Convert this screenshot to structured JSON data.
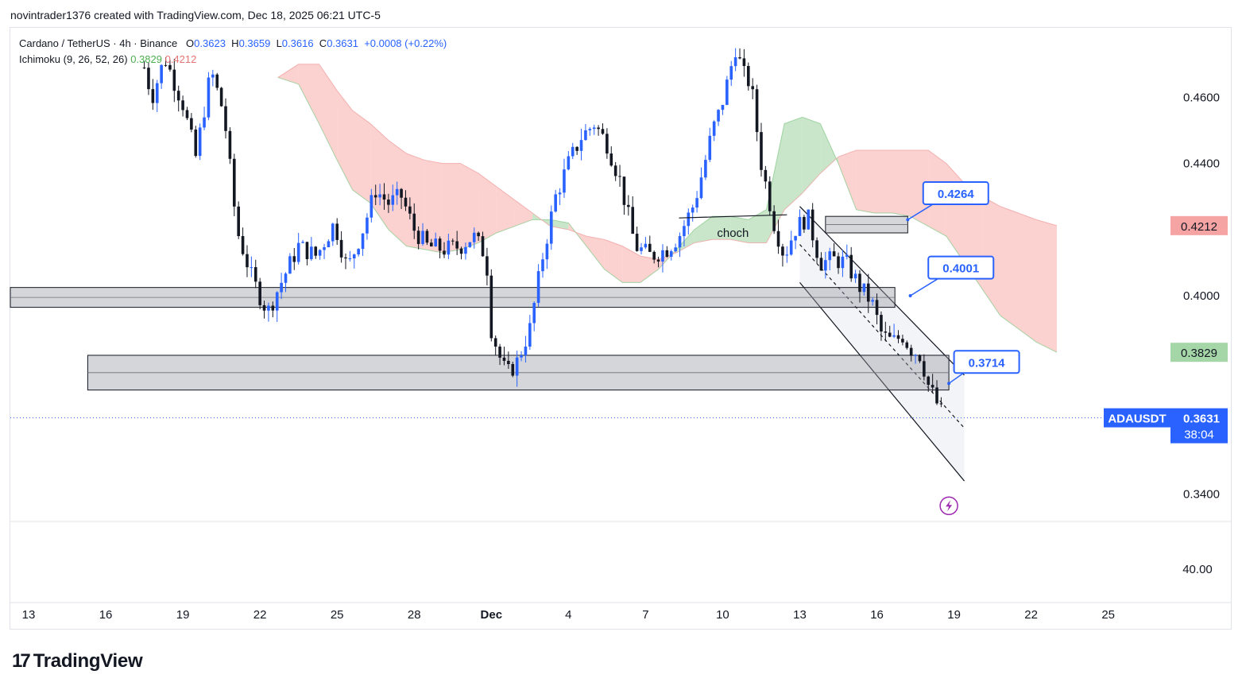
{
  "header": {
    "attribution": "novintrader1376 created with TradingView.com, Dec 18, 2025 06:21 UTC-5"
  },
  "legend": {
    "symbol_line": "Cardano / TetherUS · 4h · Binance",
    "open_label": "O",
    "open": "0.3623",
    "high_label": "H",
    "high": "0.3659",
    "low_label": "L",
    "low": "0.3616",
    "close_label": "C",
    "close": "0.3631",
    "change": "+0.0008 (+0.22%)",
    "indicator": "Ichimoku (9, 26, 52, 26)",
    "indicator_v1": "0.3829",
    "indicator_v2": "0.4212"
  },
  "footer": {
    "brand": "TradingView",
    "brand_mark": "17"
  },
  "colors": {
    "up": "#2962ff",
    "down": "#131722",
    "cloud_bull": "#a5d6a7",
    "cloud_bear": "#f8b4b0",
    "label_blue": "#2962ff",
    "price_green": "#a5d6a7",
    "price_red": "#f5a3a3"
  },
  "chart_data": {
    "type": "candlestick",
    "symbol": "ADAUSDT",
    "timeframe": "4h",
    "y_axis": {
      "range": [
        0.332,
        0.481
      ],
      "ticks": [
        "0.4600",
        "0.4400",
        "0.4000",
        "0.3400"
      ]
    },
    "oscillator_axis": {
      "tick": "40.00",
      "tick_value": 40
    },
    "x_axis": {
      "range_days": [
        0,
        41.5
      ],
      "ticks": [
        {
          "label": "13",
          "day": 0
        },
        {
          "label": "16",
          "day": 3
        },
        {
          "label": "19",
          "day": 6
        },
        {
          "label": "22",
          "day": 9
        },
        {
          "label": "25",
          "day": 12
        },
        {
          "label": "28",
          "day": 15
        },
        {
          "label": "Dec",
          "day": 18
        },
        {
          "label": "4",
          "day": 21
        },
        {
          "label": "7",
          "day": 24
        },
        {
          "label": "10",
          "day": 27
        },
        {
          "label": "13",
          "day": 30
        },
        {
          "label": "16",
          "day": 33
        },
        {
          "label": "19",
          "day": 36
        },
        {
          "label": "22",
          "day": 39
        },
        {
          "label": "25",
          "day": 42
        }
      ]
    },
    "price_path_days": [
      4.5,
      4.8,
      5.3,
      6.0,
      6.5,
      7.1,
      7.6,
      8.1,
      8.7,
      9.3,
      9.7,
      10.5,
      11.2,
      11.9,
      12.4,
      13.0,
      13.5,
      14.0,
      14.5,
      15.0,
      15.5,
      16.2,
      16.8,
      17.3,
      17.8,
      18.0,
      18.3,
      18.6,
      19.0,
      19.5,
      20.0,
      20.5,
      21.0,
      21.5,
      22.0,
      22.5,
      23.0,
      23.6,
      24.2,
      24.8,
      25.3,
      25.9,
      26.3,
      26.6,
      26.9,
      27.2,
      27.5,
      27.8,
      28.1,
      28.5,
      29.0,
      29.4,
      29.8,
      30.3,
      30.8,
      31.3,
      31.8,
      32.3,
      32.8,
      33.2,
      33.6,
      34.0,
      34.3,
      34.7,
      35.0,
      35.3,
      35.6
    ],
    "price_path_values": [
      0.469,
      0.46,
      0.472,
      0.458,
      0.442,
      0.468,
      0.455,
      0.42,
      0.405,
      0.395,
      0.402,
      0.415,
      0.412,
      0.422,
      0.408,
      0.42,
      0.432,
      0.428,
      0.43,
      0.42,
      0.415,
      0.414,
      0.415,
      0.418,
      0.412,
      0.39,
      0.382,
      0.376,
      0.38,
      0.39,
      0.412,
      0.43,
      0.44,
      0.448,
      0.452,
      0.446,
      0.435,
      0.415,
      0.412,
      0.414,
      0.418,
      0.428,
      0.44,
      0.45,
      0.456,
      0.465,
      0.475,
      0.467,
      0.464,
      0.44,
      0.422,
      0.412,
      0.42,
      0.424,
      0.41,
      0.411,
      0.41,
      0.403,
      0.398,
      0.388,
      0.386,
      0.388,
      0.384,
      0.382,
      0.373,
      0.368,
      0.3631
    ],
    "ichimoku_cloud": {
      "days": [
        9.7,
        10.5,
        11.3,
        12.0,
        12.6,
        13.3,
        14.0,
        14.7,
        15.4,
        16.1,
        16.8,
        17.5,
        18.2,
        18.9,
        19.6,
        20.3,
        21.0,
        21.7,
        22.4,
        23.1,
        23.8,
        24.5,
        25.2,
        25.9,
        26.6,
        27.3,
        28.0,
        28.7,
        29.4,
        30.1,
        30.8,
        31.5,
        32.2,
        32.9,
        33.6,
        34.3,
        35.0,
        35.7,
        36.4,
        37.1,
        37.8,
        38.5,
        39.2,
        40.0
      ],
      "span_a": [
        0.466,
        0.464,
        0.452,
        0.441,
        0.432,
        0.428,
        0.42,
        0.415,
        0.414,
        0.413,
        0.414,
        0.416,
        0.419,
        0.421,
        0.423,
        0.423,
        0.422,
        0.415,
        0.408,
        0.404,
        0.404,
        0.408,
        0.414,
        0.42,
        0.424,
        0.424,
        0.423,
        0.426,
        0.452,
        0.454,
        0.452,
        0.44,
        0.426,
        0.425,
        0.425,
        0.424,
        0.421,
        0.418,
        0.41,
        0.402,
        0.394,
        0.39,
        0.386,
        0.3829
      ],
      "span_b": [
        0.466,
        0.47,
        0.47,
        0.462,
        0.456,
        0.452,
        0.447,
        0.443,
        0.441,
        0.44,
        0.44,
        0.437,
        0.433,
        0.429,
        0.425,
        0.421,
        0.42,
        0.418,
        0.417,
        0.415,
        0.412,
        0.411,
        0.413,
        0.416,
        0.417,
        0.417,
        0.416,
        0.416,
        0.426,
        0.431,
        0.437,
        0.442,
        0.444,
        0.444,
        0.444,
        0.444,
        0.444,
        0.44,
        0.434,
        0.43,
        0.427,
        0.425,
        0.423,
        0.4212
      ]
    },
    "zones": [
      {
        "name": "zone-upper",
        "day_from": 31.0,
        "day_to": 34.2,
        "y_top": 0.424,
        "y_bottom": 0.419
      },
      {
        "name": "zone-middle",
        "day_from": -2.3,
        "day_to": 33.7,
        "y_top": 0.4025,
        "y_bottom": 0.3965
      },
      {
        "name": "zone-lower",
        "day_from": 2.3,
        "day_to": 35.8,
        "y_top": 0.382,
        "y_bottom": 0.3715
      }
    ],
    "channel": {
      "upper": [
        [
          30.0,
          0.427
        ],
        [
          36.4,
          0.376
        ]
      ],
      "lower": [
        [
          30.0,
          0.404
        ],
        [
          36.4,
          0.344
        ]
      ],
      "mid": [
        [
          30.0,
          0.4155
        ],
        [
          36.4,
          0.36
        ]
      ]
    },
    "choch": {
      "label": "choch",
      "day_from": 25.3,
      "day_to": 29.5,
      "value": 0.424
    },
    "callouts": [
      {
        "label": "0.4264",
        "day": 34.2,
        "value": 0.423,
        "box_day": 34.8,
        "box_value": 0.431
      },
      {
        "label": "0.4001",
        "day": 34.3,
        "value": 0.4,
        "box_day": 35.0,
        "box_value": 0.4085
      },
      {
        "label": "0.3714",
        "day": 35.8,
        "value": 0.3735,
        "box_day": 36.0,
        "box_value": 0.38
      }
    ],
    "current_price": {
      "symbol": "ADAUSDT",
      "value": "0.3631",
      "numeric": 0.3631,
      "countdown": "38:04"
    },
    "price_tags": [
      {
        "label": "0.4212",
        "numeric": 0.4212,
        "kind": "red"
      },
      {
        "label": "0.3829",
        "numeric": 0.3829,
        "kind": "green"
      }
    ],
    "event_marker": {
      "day": 35.8,
      "value": 0.3365,
      "icon": "lightning-icon"
    }
  }
}
